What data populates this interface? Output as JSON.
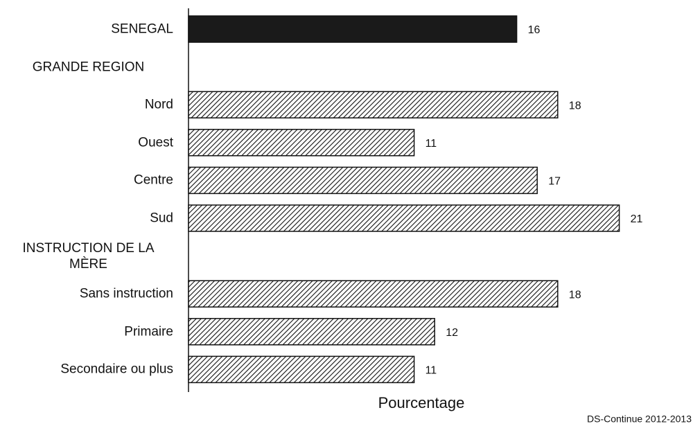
{
  "chart_data": {
    "type": "hbar",
    "categories": [
      "SENEGAL",
      "GRANDE REGION",
      "Nord",
      "Ouest",
      "Centre",
      "Sud",
      "INSTRUCTION DE LA MÈRE",
      "Sans instruction",
      "Primaire",
      "Secondaire ou plus"
    ],
    "values": [
      16,
      null,
      18,
      11,
      17,
      21,
      null,
      18,
      12,
      11
    ],
    "bar_styles": [
      "#1a1a1a",
      null,
      "hatch",
      "hatch",
      "hatch",
      "hatch",
      null,
      "hatch",
      "hatch",
      "hatch"
    ],
    "xlabel": "Pourcentage",
    "source": "DS-Continue 2012-2013",
    "xlim": [
      0,
      24
    ]
  }
}
